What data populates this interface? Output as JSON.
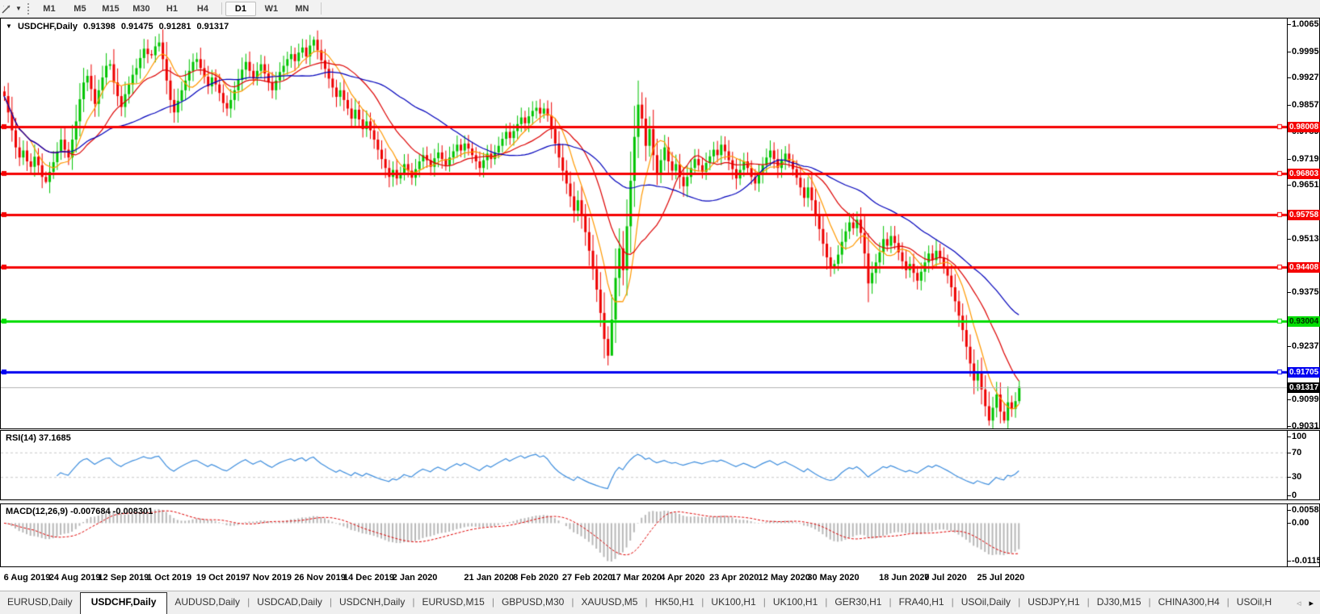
{
  "toolbar": {
    "timeframes": [
      "M1",
      "M5",
      "M15",
      "M30",
      "H1",
      "H4",
      "D1",
      "W1",
      "MN"
    ],
    "active_timeframe": "D1"
  },
  "chart": {
    "symbol": "USDCHF,Daily",
    "open": "0.91398",
    "high": "0.91475",
    "low": "0.91281",
    "close": "0.91317",
    "dropdown_glyph": "▼"
  },
  "price_axis": {
    "ticks": [
      "1.00650",
      "0.99950",
      "0.99270",
      "0.98570",
      "0.97890",
      "0.97190",
      "0.96510",
      "0.95130",
      "0.93750",
      "0.92370",
      "0.90990",
      "0.90310"
    ]
  },
  "hlines": [
    {
      "label": "0.98008",
      "price": 0.98008,
      "color": "#F50000",
      "line_color": "#F50000",
      "text_color": "#FFFFFF",
      "width": 3
    },
    {
      "label": "0.96803",
      "price": 0.96803,
      "color": "#F50000",
      "line_color": "#F50000",
      "text_color": "#FFFFFF",
      "width": 3
    },
    {
      "label": "0.95758",
      "price": 0.95758,
      "color": "#F50000",
      "line_color": "#F50000",
      "text_color": "#FFFFFF",
      "width": 3
    },
    {
      "label": "0.94408",
      "price": 0.94408,
      "color": "#F50000",
      "line_color": "#F50000",
      "text_color": "#FFFFFF",
      "width": 3
    },
    {
      "label": "0.93004",
      "price": 0.93004,
      "color": "#00DD00",
      "line_color": "#00DD00",
      "text_color": "#002A00",
      "width": 3
    },
    {
      "label": "0.91705",
      "price": 0.91705,
      "color": "#0000F0",
      "line_color": "#0000F0",
      "text_color": "#FFFFFF",
      "width": 3
    },
    {
      "label": "0.91317",
      "price": 0.91317,
      "color": "#000000",
      "line_color": "#B4B4B4",
      "text_color": "#FFFFFF",
      "width": 1,
      "current": true
    }
  ],
  "rsi": {
    "label": "RSI(14) 37.1685",
    "period": 14,
    "value": "37.1685",
    "levels": [
      "100",
      "70",
      "30",
      "0"
    ],
    "line_color": "#3E8EDE"
  },
  "macd": {
    "label": "MACD(12,26,9) -0.007684 -0.008301",
    "fast": 12,
    "slow": 26,
    "signal": 9,
    "main_value": "-0.007684",
    "signal_value": "-0.008301",
    "axis_max": "0.005818",
    "axis_zero": "0.00",
    "axis_min": "-0.01151",
    "bar_color": "#B8B8B8",
    "signal_color": "#E00000"
  },
  "chart_data": {
    "type": "candlestick",
    "symbol": "USDCHF",
    "timeframe": "Daily",
    "bull_color": "#00C400",
    "bear_color": "#EE0000",
    "ma": [
      {
        "period": 8,
        "color": "#FF9900"
      },
      {
        "period": 18,
        "color": "#DD0000"
      },
      {
        "period": 40,
        "color": "#0000BB"
      }
    ],
    "closes": [
      0.988,
      0.9838,
      0.9792,
      0.9748,
      0.9722,
      0.974,
      0.9712,
      0.9698,
      0.9724,
      0.9702,
      0.9672,
      0.9659,
      0.9685,
      0.971,
      0.9738,
      0.9768,
      0.9742,
      0.9722,
      0.9768,
      0.9815,
      0.9872,
      0.9915,
      0.9932,
      0.9898,
      0.986,
      0.9895,
      0.9928,
      0.9958,
      0.9962,
      0.9915,
      0.988,
      0.9852,
      0.9885,
      0.991,
      0.9935,
      0.9952,
      0.9978,
      1.0002,
      0.9988,
      0.9985,
      1.0008,
      1.0018,
      0.9975,
      0.992,
      0.987,
      0.9838,
      0.9868,
      0.9895,
      0.992,
      0.9945,
      0.9968,
      0.9975,
      0.9952,
      0.993,
      0.9905,
      0.9928,
      0.991,
      0.9888,
      0.9862,
      0.9848,
      0.987,
      0.9895,
      0.9922,
      0.9948,
      0.9968,
      0.9945,
      0.9925,
      0.9945,
      0.9962,
      0.9938,
      0.9915,
      0.9895,
      0.992,
      0.9942,
      0.9958,
      0.9975,
      0.9988,
      0.997,
      0.9992,
      1.0005,
      0.9982,
      1.001,
      1.0025,
      0.9998,
      0.9972,
      0.995,
      0.9925,
      0.9902,
      0.9878,
      0.9895,
      0.987,
      0.9848,
      0.9822,
      0.9845,
      0.982,
      0.9795,
      0.9815,
      0.9792,
      0.9768,
      0.9742,
      0.9718,
      0.9695,
      0.9672,
      0.969,
      0.9668,
      0.9682,
      0.9705,
      0.9688,
      0.967,
      0.9692,
      0.9712,
      0.9728,
      0.9715,
      0.9698,
      0.972,
      0.9735,
      0.9718,
      0.9702,
      0.9722,
      0.9738,
      0.9755,
      0.974,
      0.9758,
      0.9745,
      0.9728,
      0.9712,
      0.9695,
      0.9715,
      0.9732,
      0.9718,
      0.9735,
      0.9752,
      0.977,
      0.9788,
      0.9772,
      0.979,
      0.9808,
      0.9825,
      0.981,
      0.9828,
      0.9842,
      0.985,
      0.9835,
      0.9848,
      0.983,
      0.9795,
      0.9758,
      0.9722,
      0.9688,
      0.9655,
      0.9622,
      0.9585,
      0.9612,
      0.9572,
      0.953,
      0.9482,
      0.9435,
      0.9382,
      0.9322,
      0.9255,
      0.9212,
      0.9305,
      0.9412,
      0.9488,
      0.9432,
      0.9545,
      0.9662,
      0.9775,
      0.9858,
      0.9822,
      0.9752,
      0.9795,
      0.9728,
      0.9682,
      0.9715,
      0.9748,
      0.9712,
      0.9688,
      0.9705,
      0.9672,
      0.9648,
      0.9672,
      0.9695,
      0.9718,
      0.9702,
      0.9685,
      0.9708,
      0.9725,
      0.9742,
      0.9728,
      0.9755,
      0.9738,
      0.9715,
      0.9692,
      0.9668,
      0.969,
      0.9712,
      0.9695,
      0.9672,
      0.9655,
      0.9678,
      0.9702,
      0.9722,
      0.974,
      0.9718,
      0.9695,
      0.9715,
      0.9732,
      0.9712,
      0.9692,
      0.967,
      0.9645,
      0.9618,
      0.9645,
      0.9612,
      0.9575,
      0.9538,
      0.95,
      0.9465,
      0.9442,
      0.9448,
      0.9472,
      0.9505,
      0.9532,
      0.9555,
      0.954,
      0.9562,
      0.9528,
      0.9475,
      0.9398,
      0.9425,
      0.9452,
      0.9478,
      0.9512,
      0.9495,
      0.952,
      0.9502,
      0.9478,
      0.9455,
      0.9432,
      0.9448,
      0.9425,
      0.9405,
      0.9428,
      0.9452,
      0.9475,
      0.9458,
      0.9482,
      0.9465,
      0.9442,
      0.9418,
      0.9388,
      0.9352,
      0.9315,
      0.9278,
      0.9235,
      0.9192,
      0.9148,
      0.9172,
      0.9125,
      0.9082,
      0.9045,
      0.9078,
      0.9112,
      0.9068,
      0.9045,
      0.9092,
      0.9075,
      0.9095,
      0.91317
    ],
    "wick_overrides": {
      "11": {
        "l": 0.9655
      },
      "82": {
        "h": 1.0033
      },
      "141": {
        "h": 0.9868
      },
      "159": {
        "l": 0.9205
      },
      "160": {
        "l": 0.9187
      },
      "161": {
        "l": 0.9225
      },
      "167": {
        "h": 0.9855
      },
      "168": {
        "h": 0.992
      },
      "261": {
        "l": 0.9032
      },
      "265": {
        "l": 0.9038
      },
      "269": {
        "h": 0.9148,
        "l": 0.9088
      }
    },
    "x_ticks": {
      "indices": [
        1,
        13,
        26,
        39,
        52,
        65,
        78,
        91,
        104,
        123,
        136,
        149,
        162,
        175,
        188,
        201,
        214,
        233,
        245,
        259
      ],
      "labels": [
        "6 Aug 2019",
        "24 Aug 2019",
        "12 Sep 2019",
        "1 Oct 2019",
        "19 Oct 2019",
        "7 Nov 2019",
        "26 Nov 2019",
        "14 Dec 2019",
        "2 Jan 2020",
        "21 Jan 2020",
        "8 Feb 2020",
        "27 Feb 2020",
        "17 Mar 2020",
        "4 Apr 2020",
        "23 Apr 2020",
        "12 May 2020",
        "30 May 2020",
        "18 Jun 2020",
        "7 Jul 2020",
        "25 Jul 2020"
      ]
    }
  },
  "tabs": {
    "active": "USDCHF,Daily",
    "arrow_left": "◃",
    "arrow_right": "▸",
    "items": [
      {
        "label": "EURUSD,Daily"
      },
      {
        "label": "USDCHF,Daily"
      },
      {
        "label": "AUDUSD,Daily"
      },
      {
        "label": "USDCAD,Daily"
      },
      {
        "label": "USDCNH,Daily"
      },
      {
        "label": "EURUSD,M15"
      },
      {
        "label": "GBPUSD,M30"
      },
      {
        "label": "XAUUSD,M5"
      },
      {
        "label": "HK50,H1"
      },
      {
        "label": "UK100,H1"
      },
      {
        "label": "UK100,H1"
      },
      {
        "label": "GER30,H1"
      },
      {
        "label": "FRA40,H1"
      },
      {
        "label": "USOil,Daily"
      },
      {
        "label": "USDJPY,H1"
      },
      {
        "label": "DJ30,M15"
      },
      {
        "label": "CHINA300,H4"
      },
      {
        "label": "USOil,H"
      }
    ]
  }
}
